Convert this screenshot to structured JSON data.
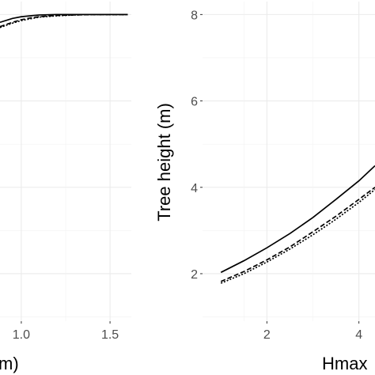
{
  "chart_data": [
    {
      "type": "line",
      "title": "",
      "xlabel": "m)",
      "ylabel": "",
      "xlim": [
        0.88,
        1.62
      ],
      "ylim": [
        0.9,
        8.3
      ],
      "x_ticks": [
        1.0,
        1.5
      ],
      "x_tick_labels": [
        "1.0",
        "1.5"
      ],
      "grid": true,
      "series": [
        {
          "line_style": "solid",
          "x": [
            0.88,
            0.95,
            1.0,
            1.05,
            1.1,
            1.2,
            1.3,
            1.4,
            1.5,
            1.6
          ],
          "y": [
            7.82,
            7.91,
            7.95,
            7.97,
            7.99,
            8.0,
            8.0,
            8.0,
            8.0,
            8.0
          ]
        },
        {
          "line_style": "dashed",
          "x": [
            0.88,
            0.95,
            1.0,
            1.05,
            1.1,
            1.2,
            1.3,
            1.4,
            1.5,
            1.6
          ],
          "y": [
            7.72,
            7.82,
            7.88,
            7.92,
            7.95,
            7.98,
            7.99,
            8.0,
            8.0,
            8.0
          ]
        },
        {
          "line_style": "dotted",
          "x": [
            0.88,
            0.95,
            1.0,
            1.05,
            1.1,
            1.2,
            1.3,
            1.4,
            1.5,
            1.6
          ],
          "y": [
            7.7,
            7.8,
            7.86,
            7.9,
            7.94,
            7.97,
            7.99,
            8.0,
            8.0,
            8.0
          ]
        }
      ]
    },
    {
      "type": "line",
      "title": "",
      "xlabel": "Hmax",
      "ylabel": "Tree height (m)",
      "xlim": [
        0.6,
        4.35
      ],
      "ylim": [
        0.9,
        8.3
      ],
      "x_ticks": [
        2,
        4
      ],
      "x_tick_labels": [
        "2",
        "4"
      ],
      "y_ticks": [
        2,
        4,
        6,
        8
      ],
      "y_tick_labels": [
        "2",
        "4",
        "6",
        "8"
      ],
      "grid": true,
      "series": [
        {
          "line_style": "solid",
          "x": [
            1.0,
            1.5,
            2.0,
            2.5,
            3.0,
            3.5,
            4.0,
            4.35
          ],
          "y": [
            2.03,
            2.3,
            2.6,
            2.93,
            3.3,
            3.72,
            4.15,
            4.5
          ]
        },
        {
          "line_style": "dashed",
          "x": [
            1.0,
            1.5,
            2.0,
            2.5,
            3.0,
            3.5,
            4.0,
            4.35
          ],
          "y": [
            1.82,
            2.05,
            2.32,
            2.62,
            2.97,
            3.33,
            3.72,
            4.0
          ]
        },
        {
          "line_style": "dotted",
          "x": [
            1.0,
            1.5,
            2.0,
            2.5,
            3.0,
            3.5,
            4.0,
            4.35
          ],
          "y": [
            1.78,
            2.0,
            2.27,
            2.57,
            2.9,
            3.26,
            3.65,
            3.95
          ]
        }
      ]
    }
  ]
}
